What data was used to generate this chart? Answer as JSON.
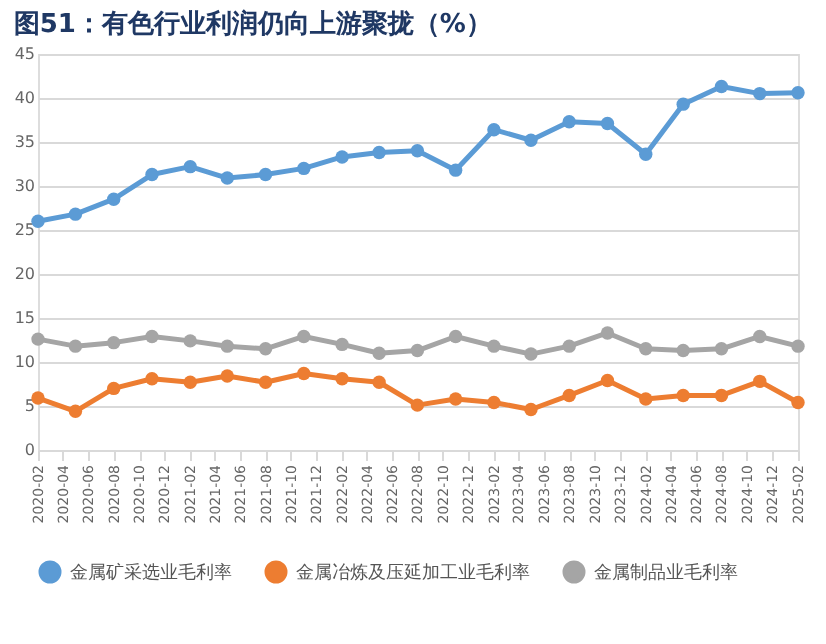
{
  "chart_data": {
    "type": "line",
    "title": "图51：有色行业利润仍向上游聚拢（%）",
    "x": [
      "2020-02",
      "2020-05",
      "2020-08",
      "2020-11",
      "2021-02",
      "2021-05",
      "2021-08",
      "2021-11",
      "2022-02",
      "2022-05",
      "2022-08",
      "2022-11",
      "2023-02",
      "2023-05",
      "2023-08",
      "2023-11",
      "2024-02",
      "2024-05",
      "2024-08",
      "2024-11",
      "2025-02"
    ],
    "series": [
      {
        "name": "金属矿采选业毛利率",
        "color": "#5b9bd5",
        "values": [
          26.0,
          26.8,
          28.5,
          31.3,
          32.2,
          30.9,
          31.3,
          32.0,
          33.3,
          33.8,
          34.0,
          31.8,
          36.4,
          35.2,
          37.3,
          37.1,
          33.6,
          39.3,
          41.3,
          40.5,
          40.6
        ]
      },
      {
        "name": "金属冶炼及压延加工业毛利率",
        "color": "#ed7d31",
        "values": [
          5.9,
          4.4,
          7.0,
          8.1,
          7.7,
          8.4,
          7.7,
          8.7,
          8.1,
          7.7,
          5.1,
          5.8,
          5.4,
          4.6,
          6.2,
          7.9,
          5.8,
          6.2,
          6.2,
          7.8,
          5.4
        ]
      },
      {
        "name": "金属制品业毛利率",
        "color": "#a5a5a5",
        "values": [
          12.6,
          11.8,
          12.2,
          12.9,
          12.4,
          11.8,
          11.5,
          12.9,
          12.0,
          11.0,
          11.3,
          12.9,
          11.8,
          10.9,
          11.8,
          13.3,
          11.5,
          11.3,
          11.5,
          12.9,
          11.8
        ]
      }
    ],
    "xlim": [
      "2020-02",
      "2025-02"
    ],
    "xticks": [
      "2020-02",
      "2020-04",
      "2020-06",
      "2020-08",
      "2020-10",
      "2020-12",
      "2021-02",
      "2021-04",
      "2021-06",
      "2021-08",
      "2021-10",
      "2021-12",
      "2022-02",
      "2022-04",
      "2022-06",
      "2022-08",
      "2022-10",
      "2022-12",
      "2023-02",
      "2023-04",
      "2023-06",
      "2023-08",
      "2023-10",
      "2023-12",
      "2024-02",
      "2024-04",
      "2024-06",
      "2024-08",
      "2024-10",
      "2024-12",
      "2025-02"
    ],
    "ylim": [
      0,
      45
    ],
    "yticks": [
      0,
      5,
      10,
      15,
      20,
      25,
      30,
      35,
      40,
      45
    ],
    "grid": "y",
    "legend": "bottom",
    "marker": "circle",
    "line_style": "solid"
  }
}
